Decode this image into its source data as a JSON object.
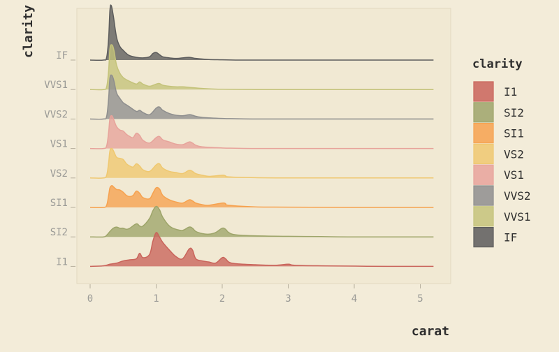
{
  "chart_data": {
    "type": "area",
    "subtype": "ridgeline-density",
    "title": "",
    "xlabel": "carat",
    "ylabel": "clarity",
    "xlim": [
      0,
      5.2
    ],
    "x_ticks": [
      "0",
      "1",
      "2",
      "3",
      "4",
      "5"
    ],
    "y_tick_labels": [
      "IF",
      "VVS1",
      "VVS2",
      "VS1",
      "VS2",
      "SI1",
      "SI2",
      "I1"
    ],
    "legend": {
      "title": "clarity",
      "placement": "right",
      "entries": [
        "I1",
        "SI2",
        "SI1",
        "VS2",
        "VS1",
        "VVS2",
        "VVS1",
        "IF"
      ]
    },
    "grid": false,
    "series": [
      {
        "name": "IF",
        "color": "#5c5c5c",
        "x": [
          0,
          0.2,
          0.25,
          0.28,
          0.3,
          0.32,
          0.35,
          0.4,
          0.45,
          0.5,
          0.55,
          0.6,
          0.7,
          0.8,
          0.9,
          0.95,
          1.0,
          1.05,
          1.1,
          1.2,
          1.3,
          1.4,
          1.5,
          1.6,
          1.7,
          1.8,
          2.0,
          2.2,
          2.5,
          3.0,
          4.0,
          5.2
        ],
        "density": [
          0,
          0,
          0.05,
          0.4,
          0.92,
          1.0,
          0.82,
          0.42,
          0.25,
          0.18,
          0.12,
          0.08,
          0.05,
          0.04,
          0.06,
          0.12,
          0.14,
          0.1,
          0.06,
          0.04,
          0.03,
          0.04,
          0.05,
          0.03,
          0.02,
          0.01,
          0.005,
          0,
          0,
          0,
          0,
          0
        ]
      },
      {
        "name": "VVS1",
        "color": "#c4c37a",
        "x": [
          0,
          0.2,
          0.25,
          0.28,
          0.3,
          0.33,
          0.36,
          0.4,
          0.45,
          0.5,
          0.55,
          0.6,
          0.7,
          0.75,
          0.8,
          0.9,
          1.0,
          1.05,
          1.1,
          1.2,
          1.3,
          1.4,
          1.5,
          1.6,
          1.7,
          2.0,
          2.5,
          3.0,
          4.0,
          5.2
        ],
        "density": [
          0,
          0,
          0.05,
          0.35,
          0.75,
          0.82,
          0.72,
          0.45,
          0.3,
          0.22,
          0.18,
          0.15,
          0.1,
          0.14,
          0.1,
          0.06,
          0.1,
          0.11,
          0.08,
          0.06,
          0.05,
          0.05,
          0.04,
          0.03,
          0.02,
          0.005,
          0,
          0,
          0,
          0
        ]
      },
      {
        "name": "VVS2",
        "color": "#8e8e8e",
        "x": [
          0,
          0.2,
          0.25,
          0.28,
          0.3,
          0.33,
          0.36,
          0.4,
          0.45,
          0.5,
          0.55,
          0.6,
          0.7,
          0.75,
          0.8,
          0.9,
          1.0,
          1.05,
          1.1,
          1.2,
          1.3,
          1.4,
          1.5,
          1.55,
          1.6,
          1.7,
          2.0,
          2.2,
          2.5,
          3.0,
          4.0,
          5.2
        ],
        "density": [
          0,
          0,
          0.05,
          0.38,
          0.75,
          0.8,
          0.7,
          0.48,
          0.38,
          0.3,
          0.26,
          0.22,
          0.14,
          0.16,
          0.12,
          0.08,
          0.2,
          0.22,
          0.16,
          0.1,
          0.07,
          0.06,
          0.08,
          0.07,
          0.05,
          0.03,
          0.01,
          0.005,
          0,
          0,
          0,
          0
        ]
      },
      {
        "name": "VS1",
        "color": "#e7a39b",
        "x": [
          0,
          0.2,
          0.25,
          0.28,
          0.3,
          0.33,
          0.36,
          0.4,
          0.45,
          0.5,
          0.55,
          0.6,
          0.65,
          0.7,
          0.75,
          0.8,
          0.9,
          1.0,
          1.05,
          1.1,
          1.2,
          1.3,
          1.4,
          1.5,
          1.55,
          1.6,
          1.7,
          2.0,
          2.2,
          2.5,
          3.0,
          4.0,
          5.2
        ],
        "density": [
          0,
          0,
          0.05,
          0.3,
          0.55,
          0.6,
          0.52,
          0.4,
          0.34,
          0.32,
          0.26,
          0.22,
          0.2,
          0.28,
          0.24,
          0.15,
          0.1,
          0.2,
          0.22,
          0.16,
          0.12,
          0.08,
          0.07,
          0.12,
          0.1,
          0.06,
          0.03,
          0.01,
          0.005,
          0,
          0,
          0,
          0
        ]
      },
      {
        "name": "VS2",
        "color": "#efc870",
        "x": [
          0,
          0.2,
          0.25,
          0.28,
          0.3,
          0.33,
          0.36,
          0.4,
          0.45,
          0.5,
          0.55,
          0.6,
          0.65,
          0.7,
          0.75,
          0.8,
          0.9,
          1.0,
          1.05,
          1.1,
          1.2,
          1.3,
          1.4,
          1.5,
          1.55,
          1.6,
          1.7,
          1.8,
          2.0,
          2.05,
          2.1,
          2.5,
          3.0,
          4.0,
          5.2
        ],
        "density": [
          0,
          0,
          0.05,
          0.28,
          0.5,
          0.54,
          0.48,
          0.38,
          0.36,
          0.34,
          0.26,
          0.22,
          0.2,
          0.26,
          0.22,
          0.15,
          0.12,
          0.24,
          0.26,
          0.18,
          0.12,
          0.1,
          0.08,
          0.14,
          0.12,
          0.08,
          0.05,
          0.03,
          0.05,
          0.04,
          0.02,
          0.005,
          0,
          0,
          0
        ]
      },
      {
        "name": "SI1",
        "color": "#f6a24f",
        "x": [
          0,
          0.2,
          0.25,
          0.28,
          0.3,
          0.33,
          0.36,
          0.4,
          0.45,
          0.5,
          0.55,
          0.6,
          0.65,
          0.7,
          0.75,
          0.8,
          0.9,
          0.95,
          1.0,
          1.05,
          1.1,
          1.2,
          1.3,
          1.4,
          1.5,
          1.55,
          1.6,
          1.7,
          1.8,
          2.0,
          2.05,
          2.1,
          2.5,
          3.0,
          4.0,
          5.2
        ],
        "density": [
          0,
          0,
          0.04,
          0.22,
          0.36,
          0.4,
          0.37,
          0.33,
          0.32,
          0.28,
          0.22,
          0.2,
          0.22,
          0.3,
          0.26,
          0.18,
          0.16,
          0.26,
          0.36,
          0.34,
          0.22,
          0.14,
          0.1,
          0.08,
          0.14,
          0.12,
          0.08,
          0.05,
          0.04,
          0.08,
          0.07,
          0.04,
          0.01,
          0.005,
          0,
          0
        ]
      },
      {
        "name": "SI2",
        "color": "#9ea56a",
        "x": [
          0,
          0.2,
          0.25,
          0.3,
          0.35,
          0.4,
          0.45,
          0.5,
          0.55,
          0.6,
          0.7,
          0.75,
          0.8,
          0.9,
          0.95,
          1.0,
          1.05,
          1.1,
          1.2,
          1.3,
          1.4,
          1.5,
          1.55,
          1.6,
          1.7,
          1.8,
          1.9,
          2.0,
          2.05,
          2.1,
          2.2,
          2.5,
          3.0,
          3.5,
          4.0,
          5.2
        ],
        "density": [
          0,
          0,
          0.03,
          0.1,
          0.16,
          0.18,
          0.16,
          0.16,
          0.14,
          0.16,
          0.24,
          0.2,
          0.2,
          0.34,
          0.48,
          0.56,
          0.5,
          0.36,
          0.2,
          0.14,
          0.12,
          0.18,
          0.16,
          0.1,
          0.06,
          0.05,
          0.08,
          0.16,
          0.14,
          0.08,
          0.04,
          0.02,
          0.01,
          0.005,
          0,
          0
        ]
      },
      {
        "name": "I1",
        "color": "#c9645b",
        "x": [
          0,
          0.2,
          0.3,
          0.4,
          0.5,
          0.6,
          0.7,
          0.75,
          0.8,
          0.9,
          0.95,
          1.0,
          1.05,
          1.1,
          1.2,
          1.3,
          1.4,
          1.5,
          1.55,
          1.6,
          1.7,
          1.8,
          1.9,
          2.0,
          2.05,
          2.1,
          2.2,
          2.5,
          2.8,
          3.0,
          3.1,
          3.5,
          4.0,
          4.5,
          5.2
        ],
        "density": [
          0,
          0.01,
          0.04,
          0.06,
          0.1,
          0.12,
          0.14,
          0.24,
          0.16,
          0.22,
          0.46,
          0.62,
          0.54,
          0.44,
          0.3,
          0.18,
          0.14,
          0.32,
          0.3,
          0.14,
          0.1,
          0.08,
          0.06,
          0.16,
          0.14,
          0.08,
          0.05,
          0.03,
          0.02,
          0.04,
          0.02,
          0.01,
          0.005,
          0,
          0
        ]
      }
    ]
  }
}
